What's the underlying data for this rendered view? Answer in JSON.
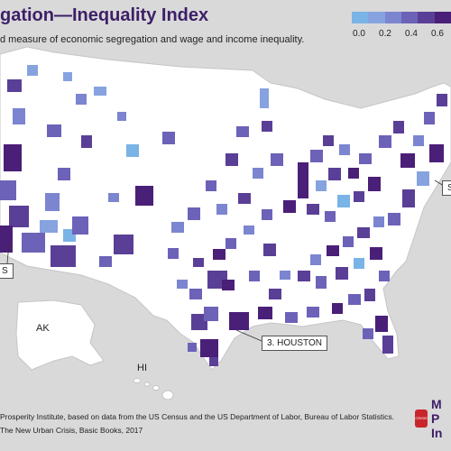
{
  "header": {
    "title": "gation—Inequality Index",
    "subtitle": "d measure of economic segregation and wage and income inequality."
  },
  "legend": {
    "ticks": [
      "0.0",
      "0.2",
      "0.4",
      "0.6"
    ],
    "colors": [
      "#7ab3e6",
      "#86a3e0",
      "#7b85d0",
      "#6c62b8",
      "#5a3f97",
      "#4a1f78"
    ]
  },
  "labels": {
    "ak": "AK",
    "hi": "HI",
    "houston": "3. HOUSTON",
    "left_edge": "S",
    "right_edge": "S"
  },
  "footer": {
    "source": "Prosperity Institute, based on data from the US Census and the US Department of Labor, Bureau of Labor Statistics.",
    "citation": "The New Urban Crisis, Basic Books, 2017"
  },
  "logo": {
    "letters": [
      "M",
      "P",
      "In"
    ],
    "badge_text": "CRISIS"
  },
  "colors": {
    "land": "#ffffff",
    "background": "#d9d9da",
    "border": "#c5c5c8",
    "title": "#3d1f66",
    "accent_red": "#c9262c"
  }
}
